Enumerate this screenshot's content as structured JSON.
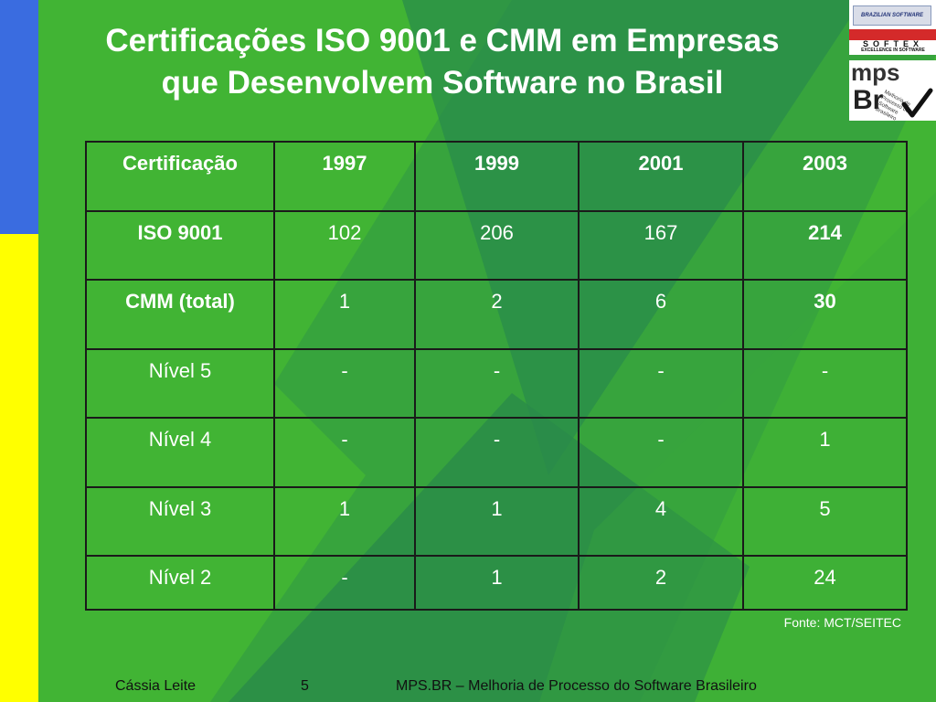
{
  "slide": {
    "title_line1": "Certificações ISO 9001 e CMM em Empresas",
    "title_line2": "que Desenvolvem Software no Brasil"
  },
  "logos": {
    "softex_banner": "BRAZILIAN SOFTWARE",
    "softex_word": "SOFTEX",
    "softex_sub": "EXCELLENCE IN SOFTWARE",
    "mps_word": "mps",
    "br_word": "Br",
    "mps_small": "Melhoria de Processo do Software Brasileiro"
  },
  "table": {
    "headers": [
      "Certificação",
      "1997",
      "1999",
      "2001",
      "2003"
    ],
    "rows": [
      [
        "ISO 9001",
        "102",
        "206",
        "167",
        "214"
      ],
      [
        "CMM (total)",
        "1",
        "2",
        "6",
        "30"
      ],
      [
        "Nível 5",
        "-",
        "-",
        "-",
        "-"
      ],
      [
        "Nível 4",
        "-",
        "-",
        "-",
        "1"
      ],
      [
        "Nível 3",
        "1",
        "1",
        "4",
        "5"
      ],
      [
        "Nível 2",
        "-",
        "1",
        "2",
        "24"
      ]
    ]
  },
  "source": "Fonte: MCT/SEITEC",
  "footer": {
    "author": "Cássia Leite",
    "page": "5",
    "title": "MPS.BR – Melhoria de Processo do Software Brasileiro"
  },
  "colors": {
    "background": "#41b434",
    "dark_green": "#2a8a4a",
    "blue_bar": "#3a6ce0",
    "yellow_bar": "#ffff00"
  }
}
